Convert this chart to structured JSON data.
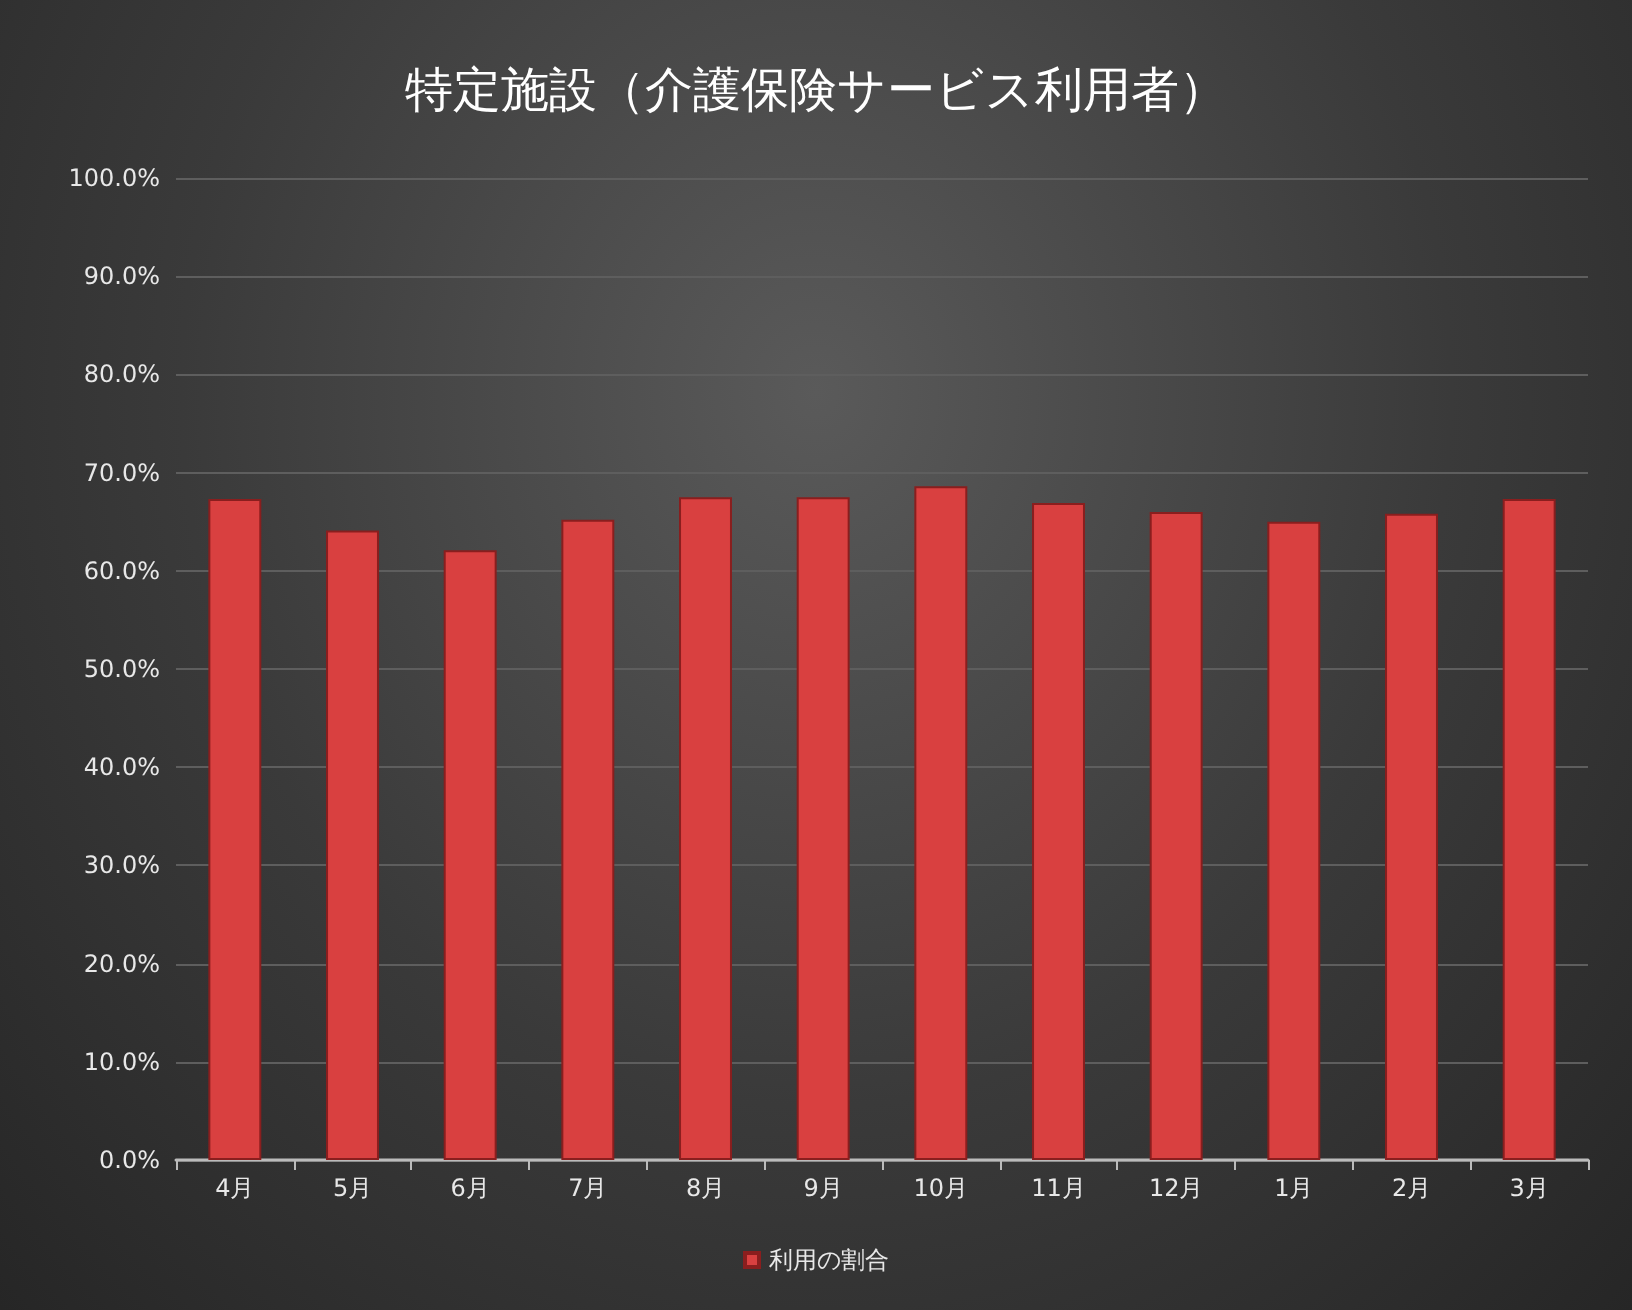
{
  "chart_data": {
    "type": "bar",
    "title": "特定施設（介護保険サービス利用者）",
    "categories": [
      "4月",
      "5月",
      "6月",
      "7月",
      "8月",
      "9月",
      "10月",
      "11月",
      "12月",
      "1月",
      "2月",
      "3月"
    ],
    "series": [
      {
        "name": "利用の割合",
        "color": "#d94040",
        "values": [
          67.3,
          64.1,
          62.1,
          65.2,
          67.5,
          67.5,
          68.6,
          66.9,
          66.0,
          65.0,
          65.8,
          67.3
        ]
      }
    ],
    "ylim": [
      0,
      100
    ],
    "yticks": [
      {
        "value": 0,
        "label": "0.0%"
      },
      {
        "value": 10,
        "label": "10.0%"
      },
      {
        "value": 20,
        "label": "20.0%"
      },
      {
        "value": 30,
        "label": "30.0%"
      },
      {
        "value": 40,
        "label": "40.0%"
      },
      {
        "value": 50,
        "label": "50.0%"
      },
      {
        "value": 60,
        "label": "60.0%"
      },
      {
        "value": 70,
        "label": "70.0%"
      },
      {
        "value": 80,
        "label": "80.0%"
      },
      {
        "value": 90,
        "label": "90.0%"
      },
      {
        "value": 100,
        "label": "100.0%"
      }
    ],
    "grid": "y",
    "legend": "bottom"
  }
}
